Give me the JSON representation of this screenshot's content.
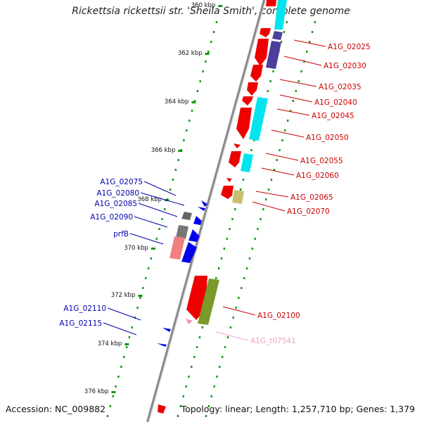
{
  "title": "Rickettsia rickettsii str. 'Sheila Smith', complete genome",
  "footer": {
    "accession": "Accession: NC_009882",
    "summary": "Topology: linear; Length: 1,257,710 bp; Genes: 1,379"
  },
  "colors": {
    "forward_label": "#cc0000",
    "reverse_label": "#0000aa",
    "trna_label": "#f0a0c8",
    "backbone": "#888888",
    "tick_dots": "#119911"
  },
  "kbp_ticks": [
    "360 kbp",
    "362 kbp",
    "364 kbp",
    "366 kbp",
    "368 kbp",
    "370 kbp",
    "372 kbp",
    "374 kbp",
    "376 kbp"
  ],
  "forward_genes": [
    {
      "label": "A1G_02025"
    },
    {
      "label": "A1G_02030"
    },
    {
      "label": "A1G_02035"
    },
    {
      "label": "A1G_02040"
    },
    {
      "label": "A1G_02045"
    },
    {
      "label": "A1G_02050"
    },
    {
      "label": "A1G_02055"
    },
    {
      "label": "A1G_02060"
    },
    {
      "label": "A1G_02065"
    },
    {
      "label": "A1G_02070"
    },
    {
      "label": "A1G_02100"
    },
    {
      "label": "A1G_t07541"
    }
  ],
  "reverse_genes": [
    {
      "label": "A1G_02075"
    },
    {
      "label": "A1G_02080"
    },
    {
      "label": "A1G_02085"
    },
    {
      "label": "A1G_02090"
    },
    {
      "label": "prfB"
    },
    {
      "label": "A1G_02110"
    },
    {
      "label": "A1G_02115"
    }
  ]
}
